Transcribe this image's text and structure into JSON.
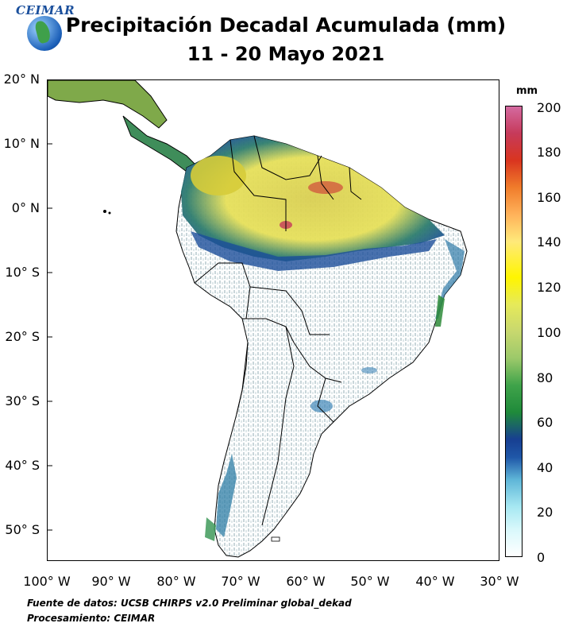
{
  "logo": {
    "text": "CEIMAR"
  },
  "title": {
    "line1": "Precipitación Decadal Acumulada (mm)",
    "line2": "11 - 20 Mayo 2021"
  },
  "map": {
    "lat_labels": [
      "20° N",
      "10° N",
      "0° N",
      "10° S",
      "20° S",
      "30° S",
      "40° S",
      "50° S"
    ],
    "lon_labels": [
      "100° W",
      "90° W",
      "80° W",
      "70° W",
      "60° W",
      "50° W",
      "40° W",
      "30° W"
    ]
  },
  "colorbar": {
    "unit": "mm",
    "labels": [
      "200",
      "180",
      "160",
      "140",
      "120",
      "100",
      "80",
      "60",
      "40",
      "20",
      "0"
    ],
    "range": [
      0,
      200
    ],
    "colors": [
      "#ffffff",
      "#a7e8f2",
      "#1f57a8",
      "#1f8a3a",
      "#9cc96a",
      "#fff500",
      "#ffb25a",
      "#d9351f",
      "#d46aa0"
    ]
  },
  "footer": {
    "source": "Fuente de datos: UCSB CHIRPS v2.0 Preliminar global_dekad",
    "processing": "Procesamiento: CEIMAR"
  }
}
